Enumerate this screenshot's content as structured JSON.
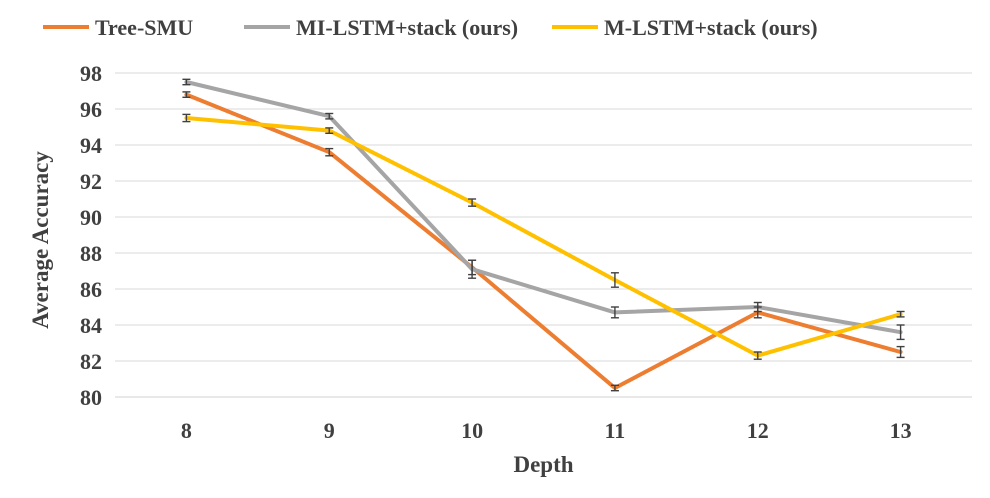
{
  "chart_data": {
    "type": "line",
    "title": "",
    "xlabel": "Depth",
    "ylabel": "Average Accuracy",
    "categories": [
      "8",
      "9",
      "10",
      "11",
      "12",
      "13"
    ],
    "ylim": [
      80,
      98
    ],
    "yticks": [
      80,
      82,
      84,
      86,
      88,
      90,
      92,
      94,
      96,
      98
    ],
    "grid": true,
    "legend_position": "top",
    "series": [
      {
        "name": "Tree-SMU",
        "color": "#ED7D31",
        "values": [
          96.8,
          93.6,
          87.2,
          80.5,
          84.7,
          82.5
        ],
        "error": [
          0.15,
          0.2,
          0.4,
          0.15,
          0.3,
          0.3
        ]
      },
      {
        "name": "MI-LSTM+stack (ours)",
        "color": "#A5A5A5",
        "values": [
          97.5,
          95.6,
          87.1,
          84.7,
          85.0,
          83.6
        ],
        "error": [
          0.15,
          0.15,
          0.5,
          0.3,
          0.25,
          0.4
        ]
      },
      {
        "name": "M-LSTM+stack (ours)",
        "color": "#FFC000",
        "values": [
          95.5,
          94.8,
          90.8,
          86.5,
          82.3,
          84.6
        ],
        "error": [
          0.2,
          0.15,
          0.2,
          0.4,
          0.2,
          0.15
        ]
      }
    ]
  }
}
